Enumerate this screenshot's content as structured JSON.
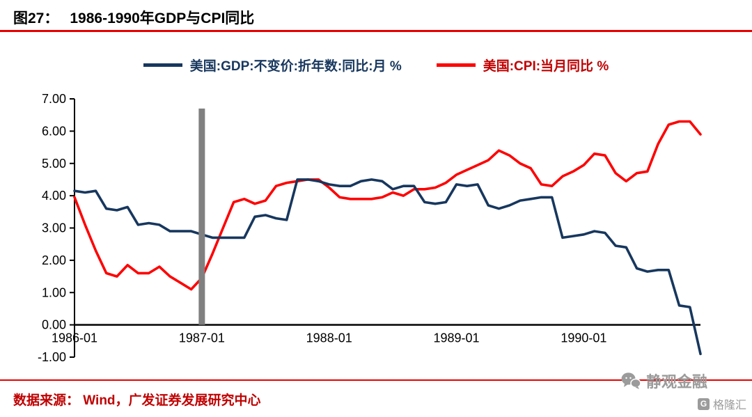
{
  "title": {
    "label": "图27：",
    "text": "1986-1990年GDP与CPI同比"
  },
  "legend": [
    {
      "label": "美国:GDP:不变价:折年数:同比:月 %",
      "color": "#17375e",
      "text_color": "#17375e"
    },
    {
      "label": "美国:CPI:当月同比 %",
      "color": "#fe0000",
      "text_color": "#c00000"
    }
  ],
  "footer": {
    "source": "数据来源： Wind，广发证券发展研究中心"
  },
  "watermark": {
    "wechat": "静观金融",
    "platform": "格隆汇"
  },
  "colors": {
    "rule": "#e60000",
    "axis": "#000000",
    "bar": "#808080",
    "footer_text": "#c00000"
  },
  "chart_data": {
    "type": "line",
    "title": "1986-1990年GDP与CPI同比",
    "xlabel": "",
    "ylabel": "%",
    "ylim": [
      -1,
      7
    ],
    "grid": false,
    "legend_position": "top",
    "y_ticks": [
      "7.00",
      "6.00",
      "5.00",
      "4.00",
      "3.00",
      "2.00",
      "1.00",
      "0.00",
      "-1.00"
    ],
    "x_ticks": [
      "1986-01",
      "1987-01",
      "1988-01",
      "1989-01",
      "1990-01"
    ],
    "highlight_bar": {
      "x": "1987-01",
      "y_from": 0,
      "y_to": 6.7,
      "color": "#808080"
    },
    "x": [
      "1986-01",
      "1986-02",
      "1986-03",
      "1986-04",
      "1986-05",
      "1986-06",
      "1986-07",
      "1986-08",
      "1986-09",
      "1986-10",
      "1986-11",
      "1986-12",
      "1987-01",
      "1987-02",
      "1987-03",
      "1987-04",
      "1987-05",
      "1987-06",
      "1987-07",
      "1987-08",
      "1987-09",
      "1987-10",
      "1987-11",
      "1987-12",
      "1988-01",
      "1988-02",
      "1988-03",
      "1988-04",
      "1988-05",
      "1988-06",
      "1988-07",
      "1988-08",
      "1988-09",
      "1988-10",
      "1988-11",
      "1988-12",
      "1989-01",
      "1989-02",
      "1989-03",
      "1989-04",
      "1989-05",
      "1989-06",
      "1989-07",
      "1989-08",
      "1989-09",
      "1989-10",
      "1989-11",
      "1989-12",
      "1990-01",
      "1990-02",
      "1990-03",
      "1990-04",
      "1990-05",
      "1990-06",
      "1990-07",
      "1990-08",
      "1990-09",
      "1990-10",
      "1990-11",
      "1990-12"
    ],
    "series": [
      {
        "name": "美国:GDP:不变价:折年数:同比:月 %",
        "color": "#17375e",
        "values": [
          4.15,
          4.1,
          4.15,
          3.6,
          3.55,
          3.65,
          3.1,
          3.15,
          3.1,
          2.9,
          2.9,
          2.9,
          2.8,
          2.7,
          2.7,
          2.7,
          2.7,
          3.35,
          3.4,
          3.3,
          3.25,
          4.5,
          4.5,
          4.45,
          4.35,
          4.3,
          4.3,
          4.45,
          4.5,
          4.45,
          4.2,
          4.3,
          4.3,
          3.8,
          3.75,
          3.8,
          4.35,
          4.3,
          4.35,
          3.7,
          3.6,
          3.7,
          3.85,
          3.9,
          3.95,
          3.95,
          2.7,
          2.75,
          2.8,
          2.9,
          2.85,
          2.45,
          2.4,
          1.75,
          1.65,
          1.7,
          1.7,
          0.6,
          0.55,
          -0.9
        ]
      },
      {
        "name": "美国:CPI:当月同比 %",
        "color": "#fe0000",
        "values": [
          3.95,
          3.1,
          2.3,
          1.6,
          1.5,
          1.85,
          1.6,
          1.6,
          1.8,
          1.5,
          1.3,
          1.1,
          1.45,
          2.2,
          3.0,
          3.8,
          3.9,
          3.75,
          3.85,
          4.3,
          4.4,
          4.45,
          4.5,
          4.5,
          4.25,
          3.95,
          3.9,
          3.9,
          3.9,
          3.95,
          4.1,
          4.0,
          4.2,
          4.2,
          4.25,
          4.4,
          4.65,
          4.8,
          4.95,
          5.1,
          5.4,
          5.25,
          5.0,
          4.85,
          4.35,
          4.3,
          4.6,
          4.75,
          4.95,
          5.3,
          5.25,
          4.7,
          4.45,
          4.7,
          4.75,
          5.6,
          6.2,
          6.3,
          6.3,
          5.9
        ]
      }
    ]
  }
}
